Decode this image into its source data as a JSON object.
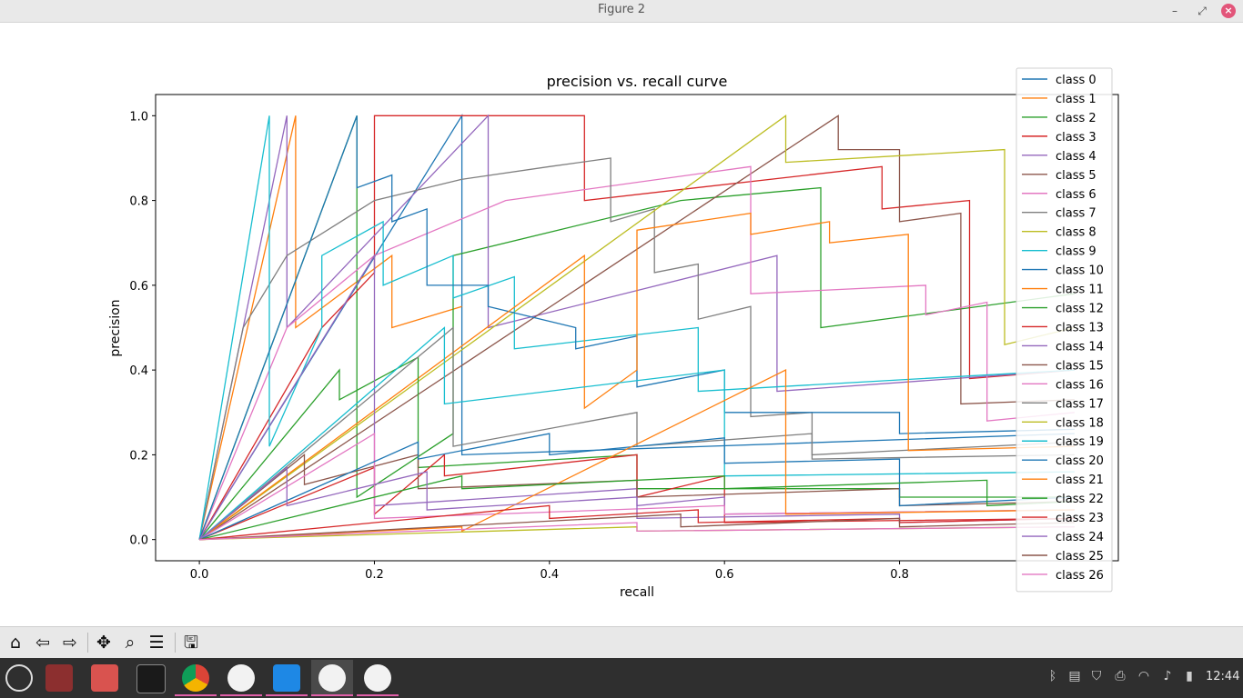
{
  "window": {
    "title": "Figure 2"
  },
  "chart_data": {
    "type": "line",
    "title": "precision vs. recall curve",
    "xlabel": "recall",
    "ylabel": "precision",
    "xlim": [
      -0.05,
      1.05
    ],
    "ylim": [
      -0.05,
      1.05
    ],
    "xticks": [
      0.0,
      0.2,
      0.4,
      0.6,
      0.8
    ],
    "yticks": [
      0.0,
      0.2,
      0.4,
      0.6,
      0.8,
      1.0
    ],
    "tick_labels_x": [
      "0.0",
      "0.2",
      "0.4",
      "0.6",
      "0.8"
    ],
    "tick_labels_y": [
      "0.0",
      "0.2",
      "0.4",
      "0.6",
      "0.8",
      "1.0"
    ],
    "grid": false,
    "legend_position": "top-right",
    "series": [
      {
        "name": "class 0",
        "color": "#1f77b4",
        "x": [
          0,
          0.3,
          0.3,
          1
        ],
        "y": [
          0,
          1,
          0.2,
          0.25
        ]
      },
      {
        "name": "class 1",
        "color": "#ff7f0e",
        "x": [
          0,
          0.11,
          0.11,
          0.22,
          0.22,
          0.3
        ],
        "y": [
          0,
          1,
          0.5,
          0.67,
          0.5,
          0.55
        ]
      },
      {
        "name": "class 2",
        "color": "#2ca02c",
        "x": [
          0,
          0.18,
          0.18,
          0.29,
          0.29,
          0.55,
          0.71,
          0.71,
          1
        ],
        "y": [
          0,
          1,
          0.1,
          0.25,
          0.67,
          0.8,
          0.83,
          0.5,
          0.58
        ]
      },
      {
        "name": "class 3",
        "color": "#d62728",
        "x": [
          0,
          0.14,
          0.2,
          0.2,
          0.44,
          0.44,
          0.78,
          0.78,
          0.88,
          0.88,
          1
        ],
        "y": [
          0,
          0.5,
          0.63,
          1,
          1,
          0.8,
          0.88,
          0.78,
          0.8,
          0.38,
          0.4
        ]
      },
      {
        "name": "class 4",
        "color": "#9467bd",
        "x": [
          0,
          0.1,
          0.1,
          0.33,
          0.33,
          0.66,
          0.66,
          1
        ],
        "y": [
          0,
          1,
          0.5,
          1,
          0.5,
          0.67,
          0.35,
          0.4
        ]
      },
      {
        "name": "class 5",
        "color": "#8c564b",
        "x": [
          0,
          0.73,
          0.73,
          0.8,
          0.8,
          0.87,
          0.87,
          1
        ],
        "y": [
          0,
          1,
          0.92,
          0.92,
          0.75,
          0.77,
          0.32,
          0.33
        ]
      },
      {
        "name": "class 6",
        "color": "#e377c2",
        "x": [
          0,
          0.1,
          0.1,
          0.2,
          0.35,
          0.63,
          0.63,
          0.83,
          0.83,
          0.9,
          0.9,
          1
        ],
        "y": [
          0,
          0.5,
          0.5,
          0.67,
          0.8,
          0.88,
          0.58,
          0.6,
          0.53,
          0.56,
          0.28,
          0.3
        ]
      },
      {
        "name": "class 7",
        "color": "#7f7f7f",
        "x": [
          0,
          0.05,
          0.1,
          0.2,
          0.3,
          0.4,
          0.47,
          0.47,
          0.52,
          0.52,
          0.57,
          0.57,
          0.63,
          0.63,
          0.7,
          0.7,
          0.9,
          1
        ],
        "y": [
          0,
          0.5,
          0.67,
          0.8,
          0.85,
          0.88,
          0.9,
          0.75,
          0.78,
          0.63,
          0.65,
          0.52,
          0.55,
          0.29,
          0.3,
          0.2,
          0.22,
          0.23
        ]
      },
      {
        "name": "class 8",
        "color": "#bcbd22",
        "x": [
          0,
          0.67,
          0.67,
          0.92,
          0.92,
          1
        ],
        "y": [
          0,
          1,
          0.89,
          0.92,
          0.46,
          0.5
        ]
      },
      {
        "name": "class 9",
        "color": "#17becf",
        "x": [
          0,
          0.08,
          0.08,
          0.14,
          0.14,
          0.21,
          0.21,
          0.29,
          0.29,
          0.36,
          0.36,
          0.57,
          0.57,
          1
        ],
        "y": [
          0,
          1,
          0.22,
          0.5,
          0.67,
          0.75,
          0.6,
          0.67,
          0.57,
          0.62,
          0.45,
          0.5,
          0.35,
          0.4
        ]
      },
      {
        "name": "class 10",
        "color": "#1f77b4",
        "x": [
          0,
          0.18,
          0.18,
          0.22,
          0.22,
          0.26,
          0.26,
          0.33,
          0.33,
          0.43,
          0.43,
          0.5,
          0.5,
          0.6,
          0.6,
          0.8,
          0.8,
          1
        ],
        "y": [
          0,
          1,
          0.83,
          0.86,
          0.75,
          0.78,
          0.6,
          0.6,
          0.55,
          0.5,
          0.45,
          0.48,
          0.36,
          0.4,
          0.3,
          0.3,
          0.25,
          0.26
        ]
      },
      {
        "name": "class 11",
        "color": "#ff7f0e",
        "x": [
          0,
          0.44,
          0.44,
          0.5,
          0.5,
          0.63,
          0.63,
          0.72,
          0.72,
          0.81,
          0.81,
          1
        ],
        "y": [
          0,
          0.67,
          0.31,
          0.4,
          0.73,
          0.77,
          0.72,
          0.75,
          0.7,
          0.72,
          0.21,
          0.22
        ]
      },
      {
        "name": "class 12",
        "color": "#2ca02c",
        "x": [
          0,
          0.16,
          0.16,
          0.25,
          0.25,
          0.5,
          0.5,
          0.8,
          0.8,
          1
        ],
        "y": [
          0,
          0.4,
          0.33,
          0.43,
          0.17,
          0.2,
          0.12,
          0.12,
          0.1,
          0.1
        ]
      },
      {
        "name": "class 13",
        "color": "#d62728",
        "x": [
          0,
          0.2,
          0.2,
          0.28,
          0.28,
          0.5,
          0.5,
          0.6,
          0.6,
          1
        ],
        "y": [
          0,
          0.17,
          0.06,
          0.2,
          0.15,
          0.2,
          0.1,
          0.15,
          0.04,
          0.05
        ]
      },
      {
        "name": "class 14",
        "color": "#9467bd",
        "x": [
          0,
          0.2,
          0.2,
          0.5,
          0.5,
          0.6,
          0.6,
          1
        ],
        "y": [
          0,
          0.67,
          0.08,
          0.12,
          0.08,
          0.1,
          0.06,
          0.07
        ]
      },
      {
        "name": "class 15",
        "color": "#8c564b",
        "x": [
          0,
          0.12,
          0.12,
          0.25,
          0.25,
          0.5,
          0.5,
          0.8,
          0.8,
          1
        ],
        "y": [
          0,
          0.2,
          0.13,
          0.2,
          0.12,
          0.14,
          0.1,
          0.12,
          0.08,
          0.09
        ]
      },
      {
        "name": "class 16",
        "color": "#e377c2",
        "x": [
          0,
          0.2,
          0.2,
          0.6,
          0.6,
          1
        ],
        "y": [
          0,
          0.25,
          0.05,
          0.08,
          0.06,
          0.07
        ]
      },
      {
        "name": "class 17",
        "color": "#7f7f7f",
        "x": [
          0,
          0.29,
          0.29,
          0.5,
          0.5,
          0.7,
          0.7,
          1
        ],
        "y": [
          0,
          0.5,
          0.22,
          0.3,
          0.22,
          0.25,
          0.19,
          0.2
        ]
      },
      {
        "name": "class 18",
        "color": "#bcbd22",
        "x": [
          0,
          0.5,
          0.5,
          1
        ],
        "y": [
          0,
          0.03,
          0.02,
          0.03
        ]
      },
      {
        "name": "class 19",
        "color": "#17becf",
        "x": [
          0,
          0.28,
          0.28,
          0.6,
          0.6,
          1
        ],
        "y": [
          0,
          0.5,
          0.32,
          0.4,
          0.15,
          0.16
        ]
      },
      {
        "name": "class 20",
        "color": "#1f77b4",
        "x": [
          0,
          0.25,
          0.25,
          0.4,
          0.4,
          0.6,
          0.6,
          0.8,
          0.8,
          1
        ],
        "y": [
          0,
          0.23,
          0.19,
          0.25,
          0.2,
          0.24,
          0.18,
          0.19,
          0.08,
          0.1
        ]
      },
      {
        "name": "class 21",
        "color": "#ff7f0e",
        "x": [
          0,
          0.3,
          0.3,
          0.67,
          0.67,
          1
        ],
        "y": [
          0,
          0.03,
          0.02,
          0.4,
          0.06,
          0.07
        ]
      },
      {
        "name": "class 22",
        "color": "#2ca02c",
        "x": [
          0,
          0.3,
          0.3,
          0.6,
          0.6,
          0.9,
          0.9,
          1
        ],
        "y": [
          0,
          0.15,
          0.12,
          0.15,
          0.12,
          0.14,
          0.08,
          0.09
        ]
      },
      {
        "name": "class 24",
        "color": "#9467bd",
        "x": [
          0,
          0.1,
          0.1,
          0.26,
          0.26,
          0.5,
          0.5,
          0.8,
          0.8,
          1
        ],
        "y": [
          0,
          0.17,
          0.08,
          0.16,
          0.07,
          0.1,
          0.05,
          0.06,
          0.04,
          0.05
        ]
      },
      {
        "name": "class 23",
        "color": "#d62728",
        "x": [
          0,
          0.4,
          0.4,
          0.57,
          0.57,
          0.8,
          0.8,
          1
        ],
        "y": [
          0,
          0.08,
          0.05,
          0.07,
          0.04,
          0.05,
          0.04,
          0.05
        ]
      },
      {
        "name": "class 25",
        "color": "#8c564b",
        "x": [
          0,
          0.55,
          0.55,
          0.8,
          0.8,
          1
        ],
        "y": [
          0,
          0.06,
          0.03,
          0.05,
          0.03,
          0.04
        ]
      },
      {
        "name": "class 26",
        "color": "#e377c2",
        "x": [
          0,
          0.5,
          0.5,
          1
        ],
        "y": [
          0,
          0.04,
          0.02,
          0.03
        ]
      }
    ],
    "legend": [
      "class 0",
      "class 1",
      "class 2",
      "class 3",
      "class 4",
      "class 5",
      "class 6",
      "class 7",
      "class 8",
      "class 9",
      "class 10",
      "class 11",
      "class 12",
      "class 13",
      "class 14",
      "class 15",
      "class 16",
      "class 17",
      "class 18",
      "class 19",
      "class 20",
      "class 21",
      "class 22",
      "class 23",
      "class 24",
      "class 25",
      "class 26"
    ]
  },
  "toolbar": {
    "buttons": [
      {
        "icon": "home-icon",
        "glyph": "⌂"
      },
      {
        "icon": "back-arrow-icon",
        "glyph": "⇦"
      },
      {
        "icon": "forward-arrow-icon",
        "glyph": "⇨"
      },
      {
        "icon": "pan-icon",
        "glyph": "✥"
      },
      {
        "icon": "zoom-icon",
        "glyph": "⌕"
      },
      {
        "icon": "configure-subplots-icon",
        "glyph": "☰"
      },
      {
        "icon": "save-icon",
        "glyph": "🖫"
      }
    ]
  },
  "taskbar": {
    "clock": "12:44"
  }
}
